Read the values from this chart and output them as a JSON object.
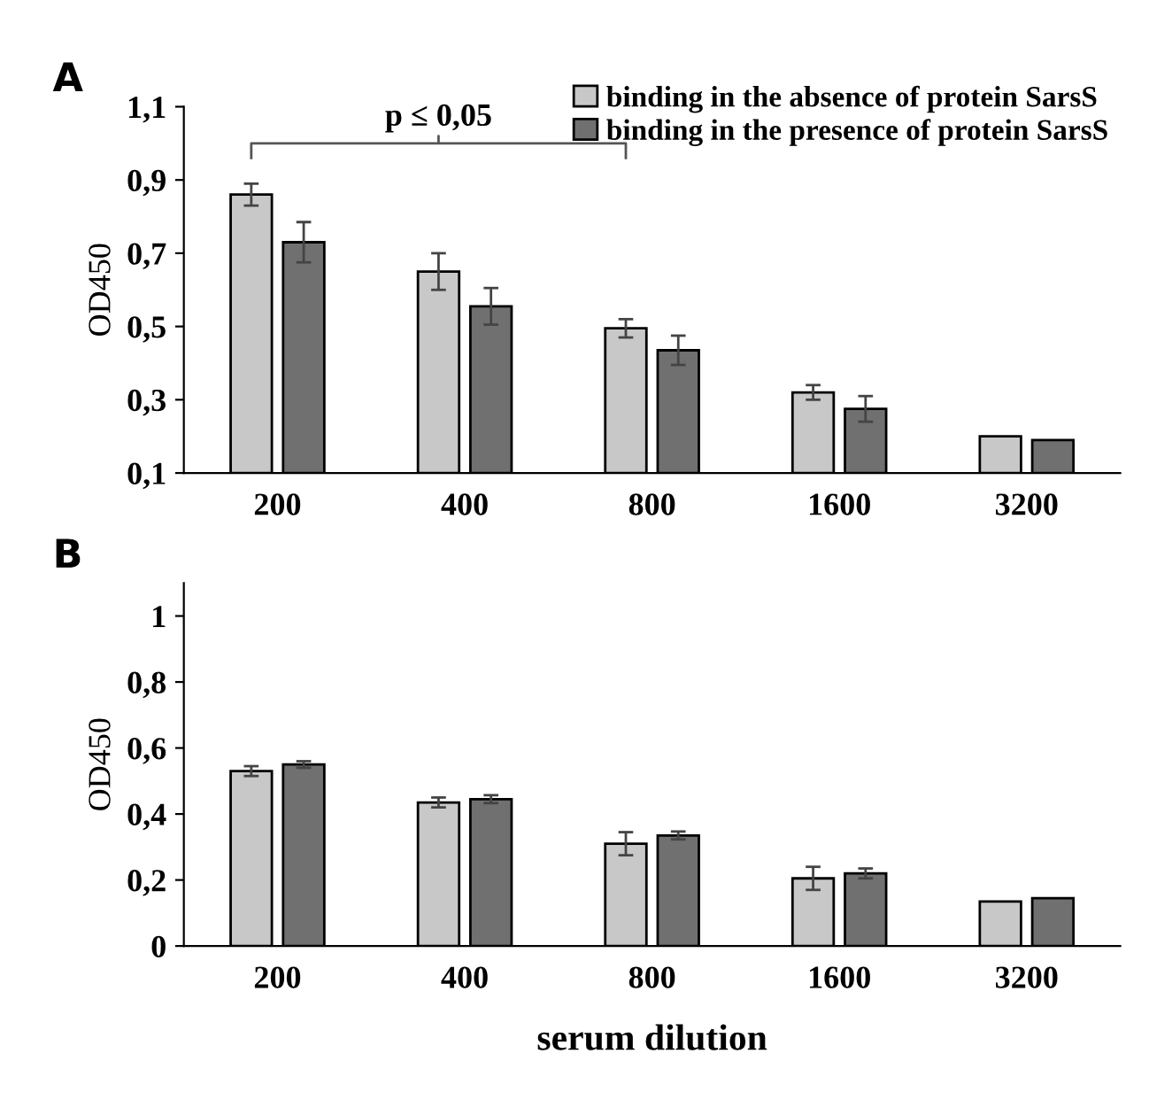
{
  "chart_data": [
    {
      "type": "bar",
      "title": "A",
      "ylabel": "OD450",
      "categories": [
        "200",
        "400",
        "800",
        "1600",
        "3200"
      ],
      "series": [
        {
          "name": "binding in the absence of protein SarsS",
          "color": "#c8c8c8",
          "values": [
            0.86,
            0.65,
            0.495,
            0.32,
            0.2
          ],
          "errors": [
            0.03,
            0.05,
            0.025,
            0.02,
            null
          ]
        },
        {
          "name": "binding in the presence of protein SarsS",
          "color": "#707070",
          "values": [
            0.73,
            0.555,
            0.435,
            0.275,
            0.19
          ],
          "errors": [
            0.055,
            0.05,
            0.04,
            0.035,
            null
          ]
        }
      ],
      "ylim": [
        0.1,
        1.1
      ],
      "yticks": [
        {
          "value": 0.1,
          "label": "0,1"
        },
        {
          "value": 0.3,
          "label": "0,3"
        },
        {
          "value": 0.5,
          "label": "0,5"
        },
        {
          "value": 0.7,
          "label": "0,7"
        },
        {
          "value": 0.9,
          "label": "0,9"
        },
        {
          "value": 1.1,
          "label": "1,1"
        }
      ],
      "annotations": [
        "p ≤ 0,05"
      ],
      "legend": "top right",
      "grid": false
    },
    {
      "type": "bar",
      "title": "B",
      "ylabel": "OD450",
      "xlabel": "serum dilution",
      "categories": [
        "200",
        "400",
        "800",
        "1600",
        "3200"
      ],
      "series": [
        {
          "color": "#c8c8c8",
          "values": [
            0.53,
            0.435,
            0.31,
            0.205,
            0.135
          ],
          "errors": [
            0.015,
            0.015,
            0.035,
            0.035,
            null
          ]
        },
        {
          "color": "#707070",
          "values": [
            0.55,
            0.445,
            0.335,
            0.22,
            0.145
          ],
          "errors": [
            0.01,
            0.012,
            0.012,
            0.015,
            null
          ]
        }
      ],
      "ylim": [
        0,
        1.1
      ],
      "yticks": [
        {
          "value": 0,
          "label": "0"
        },
        {
          "value": 0.2,
          "label": "0,2"
        },
        {
          "value": 0.4,
          "label": "0,4"
        },
        {
          "value": 0.6,
          "label": "0,6"
        },
        {
          "value": 0.8,
          "label": "0,8"
        },
        {
          "value": 1,
          "label": "1"
        }
      ],
      "legend": false,
      "grid": false
    }
  ]
}
